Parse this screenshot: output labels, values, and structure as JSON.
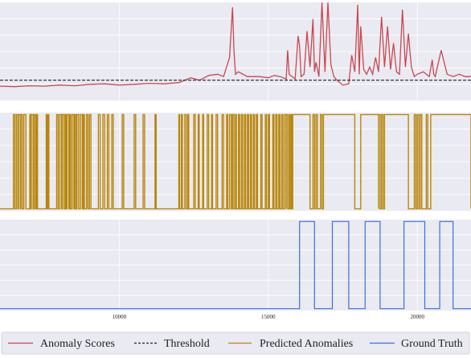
{
  "chart_data": [
    {
      "type": "line",
      "panel": "anomaly-scores",
      "xlim": [
        6000,
        21800
      ],
      "ylim": [
        -0.5,
        3.6
      ],
      "grid": true,
      "series": [
        {
          "name": "Anomaly Scores",
          "color": "#c9474f",
          "x": [
            6000,
            6500,
            7000,
            7500,
            8000,
            8500,
            9000,
            9500,
            10000,
            10500,
            11000,
            11500,
            12000,
            12400,
            12700,
            13000,
            13300,
            13500,
            13700,
            13800,
            13850,
            13900,
            14000,
            14300,
            14700,
            15000,
            15200,
            15400,
            15600,
            15650,
            15700,
            15800,
            15900,
            16000,
            16050,
            16100,
            16200,
            16300,
            16400,
            16500,
            16550,
            16600,
            16700,
            16800,
            16900,
            17000,
            17100,
            17200,
            17300,
            17500,
            17700,
            17800,
            17900,
            18000,
            18050,
            18100,
            18200,
            18300,
            18400,
            18500,
            18600,
            18700,
            18800,
            18900,
            19000,
            19100,
            19200,
            19300,
            19400,
            19500,
            19600,
            19700,
            19800,
            19900,
            20000,
            20200,
            20400,
            20500,
            20550,
            20600,
            20800,
            21000,
            21200,
            21400,
            21600,
            21800
          ],
          "y": [
            0.1,
            0.08,
            0.12,
            0.1,
            0.15,
            0.12,
            0.18,
            0.2,
            0.15,
            0.18,
            0.22,
            0.2,
            0.25,
            0.45,
            0.35,
            0.55,
            0.6,
            0.5,
            1.3,
            3.4,
            1.6,
            0.6,
            0.7,
            0.5,
            0.5,
            0.45,
            0.55,
            0.5,
            0.4,
            1.6,
            0.6,
            0.5,
            0.4,
            2.2,
            1.8,
            0.5,
            0.6,
            2.4,
            0.9,
            2.9,
            0.7,
            1.1,
            0.5,
            3.6,
            0.7,
            3.6,
            1.0,
            0.5,
            0.35,
            0.15,
            0.2,
            1.4,
            0.7,
            3.5,
            0.6,
            2.6,
            0.8,
            0.6,
            0.9,
            0.6,
            1.3,
            0.7,
            3.0,
            0.9,
            2.6,
            0.8,
            1.9,
            0.7,
            0.6,
            3.3,
            0.9,
            2.3,
            0.9,
            0.5,
            0.6,
            0.7,
            0.5,
            1.2,
            0.6,
            0.5,
            1.6,
            0.6,
            0.5,
            0.6,
            0.5,
            0.5
          ]
        },
        {
          "name": "Threshold",
          "color": "#222222",
          "style": "dashed",
          "x": [
            6000,
            21800
          ],
          "y": [
            0.35,
            0.35
          ]
        }
      ]
    },
    {
      "type": "line",
      "panel": "predicted-anomalies",
      "xlim": [
        6000,
        21800
      ],
      "ylim": [
        0,
        1
      ],
      "grid": true,
      "series": [
        {
          "name": "Predicted Anomalies",
          "color": "#b8860b",
          "style": "binary-step",
          "intervals": [
            [
              6450,
              6500
            ],
            [
              6550,
              6600
            ],
            [
              6620,
              6680
            ],
            [
              6700,
              6750
            ],
            [
              6800,
              6870
            ],
            [
              7000,
              7030
            ],
            [
              7050,
              7110
            ],
            [
              7150,
              7200
            ],
            [
              7230,
              7260
            ],
            [
              7550,
              7580
            ],
            [
              7610,
              7640
            ],
            [
              7900,
              7950
            ],
            [
              8000,
              8060
            ],
            [
              8100,
              8160
            ],
            [
              8200,
              8230
            ],
            [
              8250,
              8310
            ],
            [
              8340,
              8370
            ],
            [
              8420,
              8480
            ],
            [
              8500,
              8540
            ],
            [
              8580,
              8640
            ],
            [
              8700,
              8760
            ],
            [
              8800,
              8830
            ],
            [
              8900,
              8950
            ],
            [
              9000,
              9050
            ],
            [
              9300,
              9360
            ],
            [
              9450,
              9510
            ],
            [
              9600,
              9650
            ],
            [
              9750,
              9800
            ],
            [
              10100,
              10150
            ],
            [
              10500,
              10550
            ],
            [
              10800,
              10850
            ],
            [
              11200,
              11240
            ],
            [
              12000,
              12020
            ],
            [
              12080,
              12120
            ],
            [
              12200,
              12250
            ],
            [
              12300,
              12330
            ],
            [
              12500,
              12550
            ],
            [
              12650,
              12680
            ],
            [
              12800,
              12830
            ],
            [
              12950,
              13000
            ],
            [
              13100,
              13130
            ],
            [
              13250,
              13300
            ],
            [
              13450,
              13500
            ],
            [
              13600,
              13640
            ],
            [
              13700,
              13760
            ],
            [
              13800,
              13850
            ],
            [
              13900,
              13930
            ],
            [
              14000,
              14040
            ],
            [
              14100,
              14140
            ],
            [
              14200,
              14240
            ],
            [
              14300,
              14340
            ],
            [
              14400,
              14440
            ],
            [
              14500,
              14540
            ],
            [
              14600,
              14640
            ],
            [
              14750,
              14790
            ],
            [
              14900,
              14940
            ],
            [
              15000,
              15040
            ],
            [
              15150,
              15190
            ],
            [
              15250,
              15290
            ],
            [
              15350,
              15390
            ],
            [
              15450,
              15490
            ],
            [
              15550,
              15600
            ],
            [
              15600,
              15650
            ],
            [
              15700,
              15740
            ],
            [
              15780,
              15800
            ],
            [
              15820,
              16400
            ],
            [
              16500,
              16550
            ],
            [
              16600,
              16650
            ],
            [
              16750,
              16800
            ],
            [
              16850,
              17900
            ],
            [
              18100,
              18700
            ],
            [
              18700,
              18750
            ],
            [
              18800,
              18850
            ],
            [
              18900,
              19700
            ],
            [
              19900,
              19950
            ],
            [
              20000,
              20050
            ],
            [
              20100,
              20150
            ],
            [
              20300,
              20350
            ],
            [
              20450,
              21800
            ]
          ]
        }
      ]
    },
    {
      "type": "line",
      "panel": "ground-truth",
      "xlim": [
        6000,
        21800
      ],
      "ylim": [
        0,
        1
      ],
      "grid": true,
      "x_ticks": [
        10000,
        15000,
        20000
      ],
      "x_tick_labels": [
        "10000",
        "15000",
        "20000"
      ],
      "series": [
        {
          "name": "Ground Truth",
          "color": "#3a6fd8",
          "style": "binary-step",
          "intervals": [
            [
              16050,
              16550
            ],
            [
              17150,
              17700
            ],
            [
              18250,
              18750
            ],
            [
              19550,
              20250
            ],
            [
              20750,
              21200
            ]
          ]
        }
      ]
    }
  ],
  "legend": {
    "placement": "bottom",
    "items": [
      {
        "label": "Anomaly Scores",
        "color": "#c9474f",
        "style": "solid"
      },
      {
        "label": "Threshold",
        "color": "#222222",
        "style": "dashed"
      },
      {
        "label": "Predicted Anomalies",
        "color": "#b8860b",
        "style": "solid"
      },
      {
        "label": "Ground Truth",
        "color": "#3a6fd8",
        "style": "solid"
      }
    ]
  },
  "colors": {
    "panel_background": "#eaeaf2",
    "grid": "#ffffff"
  }
}
